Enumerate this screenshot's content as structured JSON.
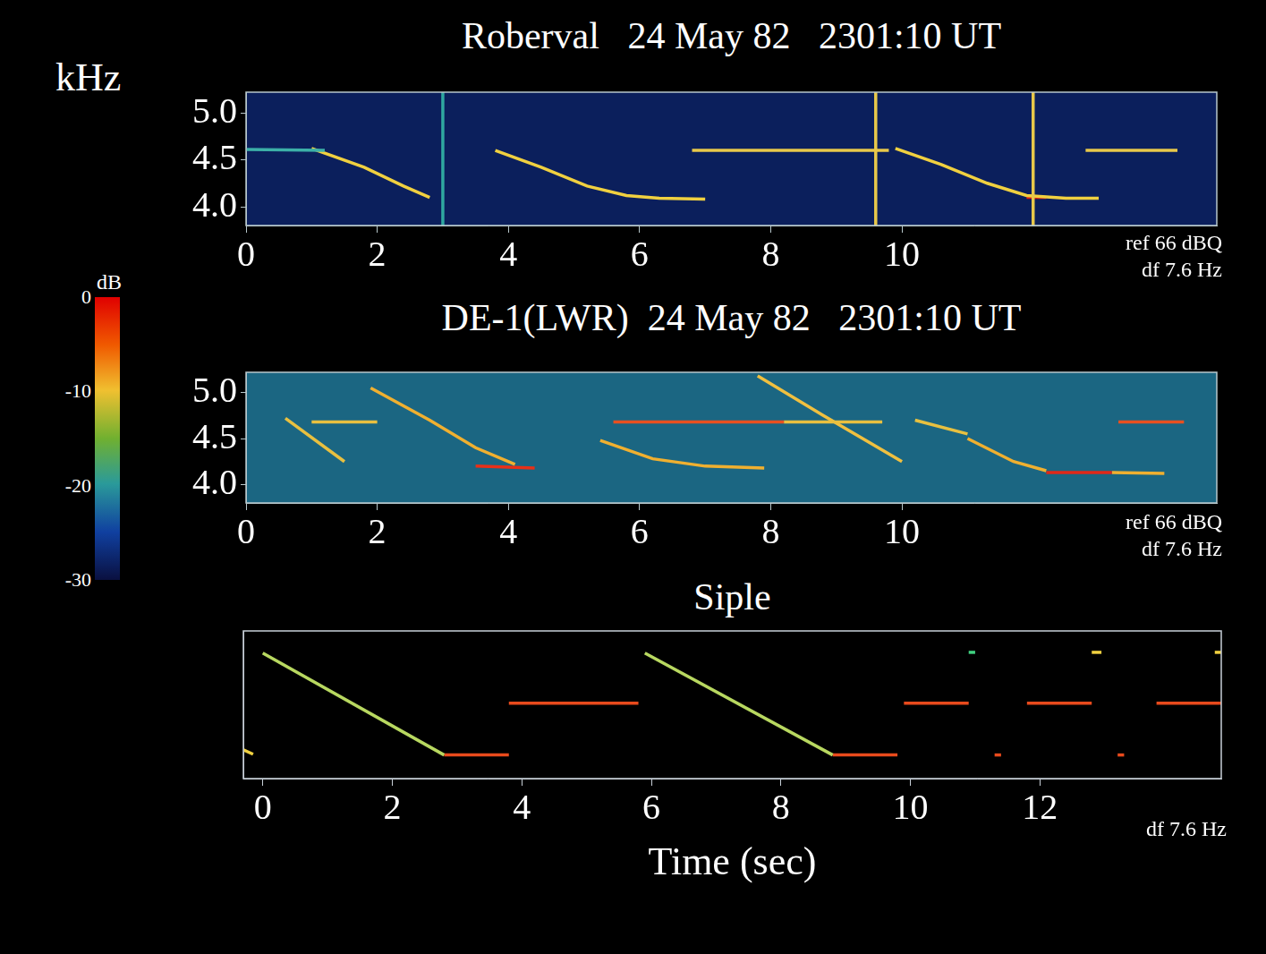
{
  "chart_data": [
    {
      "type": "line",
      "title": "Roberval   24 May 82   2301:10 UT",
      "y_label": "kHz",
      "annotations": [
        "ref 66 dBQ",
        "df 7.6 Hz"
      ],
      "grid": false,
      "xlim": [
        0,
        14.8
      ],
      "xticks": [
        0,
        2,
        4,
        6,
        8,
        10
      ],
      "ylim": [
        3.8,
        5.22
      ],
      "yticks": [
        {
          "value": 4,
          "label": "4.0"
        },
        {
          "value": 4.5,
          "label": "4.5"
        },
        {
          "value": 5,
          "label": "5.0"
        }
      ],
      "series": [
        {
          "color": "#2fa8a0",
          "x": [
            3.0,
            3.0
          ],
          "values": [
            3.8,
            5.22
          ]
        },
        {
          "color": "#e8c84a",
          "x": [
            9.6,
            9.6
          ],
          "values": [
            3.8,
            5.22
          ]
        },
        {
          "color": "#e8c84a",
          "x": [
            12.0,
            12.0
          ],
          "values": [
            3.8,
            5.22
          ]
        },
        {
          "color": "#3cb0a8",
          "x": [
            0,
            1.2
          ],
          "values": [
            4.61,
            4.6
          ]
        },
        {
          "color": "#f0d040",
          "x": [
            1.0,
            1.8,
            2.4,
            2.8
          ],
          "values": [
            4.62,
            4.42,
            4.22,
            4.1
          ]
        },
        {
          "color": "#f0d040",
          "x": [
            3.8,
            4.5,
            5.2,
            5.8,
            6.3,
            7.0
          ],
          "values": [
            4.6,
            4.42,
            4.22,
            4.12,
            4.09,
            4.08
          ]
        },
        {
          "color": "#e8c84a",
          "x": [
            6.8,
            9.8
          ],
          "values": [
            4.6,
            4.6
          ]
        },
        {
          "color": "#f0d040",
          "x": [
            9.9,
            10.6,
            11.3,
            11.9,
            12.5,
            13.0
          ],
          "values": [
            4.62,
            4.45,
            4.25,
            4.12,
            4.09,
            4.09
          ]
        },
        {
          "color": "#e02010",
          "x": [
            11.9,
            12.2
          ],
          "values": [
            4.1,
            4.1
          ]
        },
        {
          "color": "#e8c84a",
          "x": [
            12.8,
            14.2
          ],
          "values": [
            4.6,
            4.6
          ]
        }
      ]
    },
    {
      "type": "line",
      "title": "DE-1(LWR)  24 May 82   2301:10 UT",
      "annotations": [
        "ref 66 dBQ",
        "df 7.6 Hz"
      ],
      "grid": false,
      "xlim": [
        0,
        14.8
      ],
      "xticks": [
        0,
        2,
        4,
        6,
        8,
        10
      ],
      "ylim": [
        3.8,
        5.22
      ],
      "yticks": [
        {
          "value": 4,
          "label": "4.0"
        },
        {
          "value": 4.5,
          "label": "4.5"
        },
        {
          "value": 5,
          "label": "5.0"
        }
      ],
      "series": [
        {
          "color": "#e8c040",
          "x": [
            0.6,
            1.5
          ],
          "values": [
            4.72,
            4.25
          ]
        },
        {
          "color": "#e8c040",
          "x": [
            1.0,
            2.0
          ],
          "values": [
            4.68,
            4.68
          ]
        },
        {
          "color": "#f0b030",
          "x": [
            1.9,
            2.8,
            3.5,
            4.1
          ],
          "values": [
            5.05,
            4.7,
            4.4,
            4.22
          ]
        },
        {
          "color": "#e83018",
          "x": [
            3.5,
            4.4
          ],
          "values": [
            4.2,
            4.18
          ]
        },
        {
          "color": "#e85020",
          "x": [
            5.6,
            8.2
          ],
          "values": [
            4.68,
            4.68
          ]
        },
        {
          "color": "#e8c040",
          "x": [
            8.2,
            9.7
          ],
          "values": [
            4.68,
            4.68
          ]
        },
        {
          "color": "#f0b030",
          "x": [
            5.4,
            6.2,
            7.0,
            7.9
          ],
          "values": [
            4.48,
            4.28,
            4.2,
            4.18
          ]
        },
        {
          "color": "#f0c040",
          "x": [
            7.8,
            8.8,
            10.0
          ],
          "values": [
            5.18,
            4.75,
            4.25
          ]
        },
        {
          "color": "#e8c040",
          "x": [
            10.2,
            11.0
          ],
          "values": [
            4.7,
            4.55
          ]
        },
        {
          "color": "#f0b030",
          "x": [
            11.0,
            11.7,
            12.2
          ],
          "values": [
            4.5,
            4.25,
            4.15
          ]
        },
        {
          "color": "#e02818",
          "x": [
            12.2,
            13.2
          ],
          "values": [
            4.13,
            4.13
          ]
        },
        {
          "color": "#f0b030",
          "x": [
            13.2,
            14.0
          ],
          "values": [
            4.13,
            4.12
          ]
        },
        {
          "color": "#e85020",
          "x": [
            13.3,
            14.3
          ],
          "values": [
            4.68,
            4.68
          ]
        }
      ]
    },
    {
      "type": "line",
      "title": "Siple",
      "x_label": "Time (sec)",
      "annotations": [
        "df 7.6 Hz"
      ],
      "grid": false,
      "tick_labels": "x",
      "xlim": [
        -0.3,
        14.8
      ],
      "xticks": [
        0,
        2,
        4,
        6,
        8,
        10,
        12
      ],
      "ylim": [
        3.6,
        5.6
      ],
      "series": [
        {
          "color": "#b8d860",
          "x": [
            0,
            2.8
          ],
          "values": [
            5.3,
            3.92
          ]
        },
        {
          "color": "#e84a1c",
          "x": [
            2.8,
            3.8
          ],
          "values": [
            3.92,
            3.92
          ]
        },
        {
          "color": "#e84a1c",
          "x": [
            3.8,
            5.8
          ],
          "values": [
            4.62,
            4.62
          ]
        },
        {
          "color": "#b8d860",
          "x": [
            5.9,
            8.8
          ],
          "values": [
            5.3,
            3.92
          ]
        },
        {
          "color": "#e84a1c",
          "x": [
            8.8,
            9.8
          ],
          "values": [
            3.92,
            3.92
          ]
        },
        {
          "color": "#e84a1c",
          "x": [
            9.9,
            10.9
          ],
          "values": [
            4.62,
            4.62
          ]
        },
        {
          "color": "#e84a1c",
          "x": [
            11.8,
            12.8
          ],
          "values": [
            4.62,
            4.62
          ]
        },
        {
          "color": "#e84a1c",
          "x": [
            13.8,
            14.8
          ],
          "values": [
            4.62,
            4.62
          ]
        },
        {
          "color": "#e84a1c",
          "x": [
            11.3,
            11.4
          ],
          "values": [
            3.92,
            3.92
          ]
        },
        {
          "color": "#e84a1c",
          "x": [
            13.2,
            13.3
          ],
          "values": [
            3.92,
            3.92
          ]
        },
        {
          "color": "#40d080",
          "x": [
            10.9,
            11.0
          ],
          "values": [
            5.31,
            5.31
          ]
        },
        {
          "color": "#f0d040",
          "x": [
            12.8,
            12.95
          ],
          "values": [
            5.31,
            5.31
          ]
        },
        {
          "color": "#f0d040",
          "x": [
            14.7,
            14.8
          ],
          "values": [
            5.31,
            5.31
          ]
        },
        {
          "color": "#f0d040",
          "x": [
            -0.3,
            -0.15
          ],
          "values": [
            3.99,
            3.93
          ]
        }
      ]
    }
  ],
  "colorbar": {
    "label": "dB",
    "range": [
      -30,
      0
    ],
    "ticks": [
      0,
      -10,
      -20,
      -30
    ]
  }
}
